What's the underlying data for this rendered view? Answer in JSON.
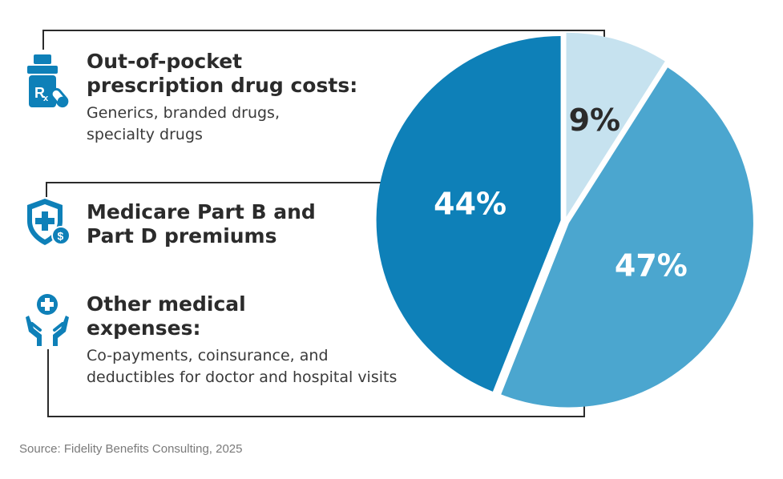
{
  "legend": {
    "drugs": {
      "title_lines": [
        "Out-of-pocket",
        "prescription drug costs:"
      ],
      "desc_lines": [
        "Generics, branded drugs,",
        "specialty drugs"
      ],
      "icon": "prescription-bottle-icon"
    },
    "premiums": {
      "title_lines": [
        "Medicare Part B and",
        "Part D premiums"
      ],
      "icon": "shield-medical-dollar-icon"
    },
    "medical": {
      "title_lines": [
        "Other medical",
        "expenses:"
      ],
      "desc_lines": [
        "Co-payments, coinsurance, and",
        "deductibles for doctor and hospital visits"
      ],
      "icon": "hands-medical-cross-icon"
    }
  },
  "source": "Source: Fidelity Benefits Consulting, 2025",
  "chart_data": {
    "type": "pie",
    "slices": [
      {
        "label": "9%",
        "value": 9,
        "color": "#c6e2ef",
        "label_color": "#2b2b2b"
      },
      {
        "label": "47%",
        "value": 47,
        "color": "#4ba6cf",
        "label_color": "#ffffff"
      },
      {
        "label": "44%",
        "value": 44,
        "color": "#0e80b8",
        "label_color": "#ffffff"
      }
    ],
    "accent_color": "#0e80b8",
    "line_color": "#2b2b2b"
  }
}
